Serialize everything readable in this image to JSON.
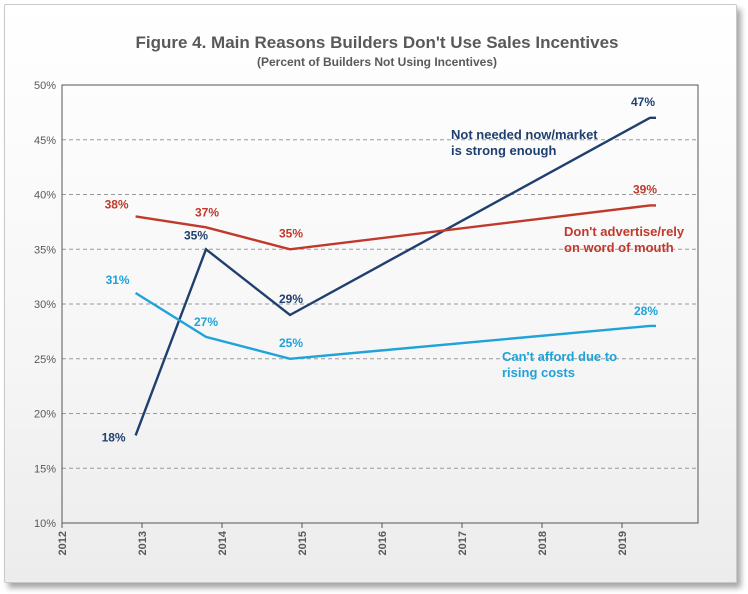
{
  "chart_data": {
    "type": "line",
    "title": "Figure 4.  Main Reasons Builders Don't Use Sales Incentives",
    "subtitle": "(Percent of Builders Not Using Incentives)",
    "y_ticks": [
      "10%",
      "15%",
      "20%",
      "25%",
      "30%",
      "35%",
      "40%",
      "45%",
      "50%"
    ],
    "ylim": [
      10,
      50
    ],
    "x_ticks": [
      "2012",
      "2013",
      "2014",
      "2015",
      "2016",
      "2017",
      "2018",
      "2019"
    ],
    "xlim": [
      2012,
      2019.95
    ],
    "grid": "horizontal dashed",
    "series": [
      {
        "name": "Not needed now/market is strong enough",
        "name_lines": [
          "Not needed now/market",
          "is strong enough"
        ],
        "color": "#1f3f6e",
        "points": [
          {
            "x": 2012.92,
            "y": 18,
            "label": "18%"
          },
          {
            "x": 2013.8,
            "y": 35,
            "label": "35%"
          },
          {
            "x": 2014.85,
            "y": 29,
            "label": "29%"
          },
          {
            "x": 2019.35,
            "y": 47,
            "label": "47%"
          }
        ]
      },
      {
        "name": "Don't advertise/rely on word of mouth",
        "name_lines": [
          "Don't advertise/rely",
          "on word of mouth"
        ],
        "color": "#c0392b",
        "points": [
          {
            "x": 2012.92,
            "y": 38,
            "label": "38%"
          },
          {
            "x": 2013.8,
            "y": 37,
            "label": "37%"
          },
          {
            "x": 2014.85,
            "y": 35,
            "label": "35%"
          },
          {
            "x": 2019.35,
            "y": 39,
            "label": "39%"
          }
        ]
      },
      {
        "name": "Can't afford due to rising costs",
        "name_lines": [
          "Can't afford due to",
          "rising costs"
        ],
        "color": "#1fa3d9",
        "points": [
          {
            "x": 2012.92,
            "y": 31,
            "label": "31%"
          },
          {
            "x": 2013.8,
            "y": 27,
            "label": "27%"
          },
          {
            "x": 2014.85,
            "y": 25,
            "label": "25%"
          },
          {
            "x": 2019.35,
            "y": 28,
            "label": "28%"
          }
        ]
      }
    ]
  }
}
